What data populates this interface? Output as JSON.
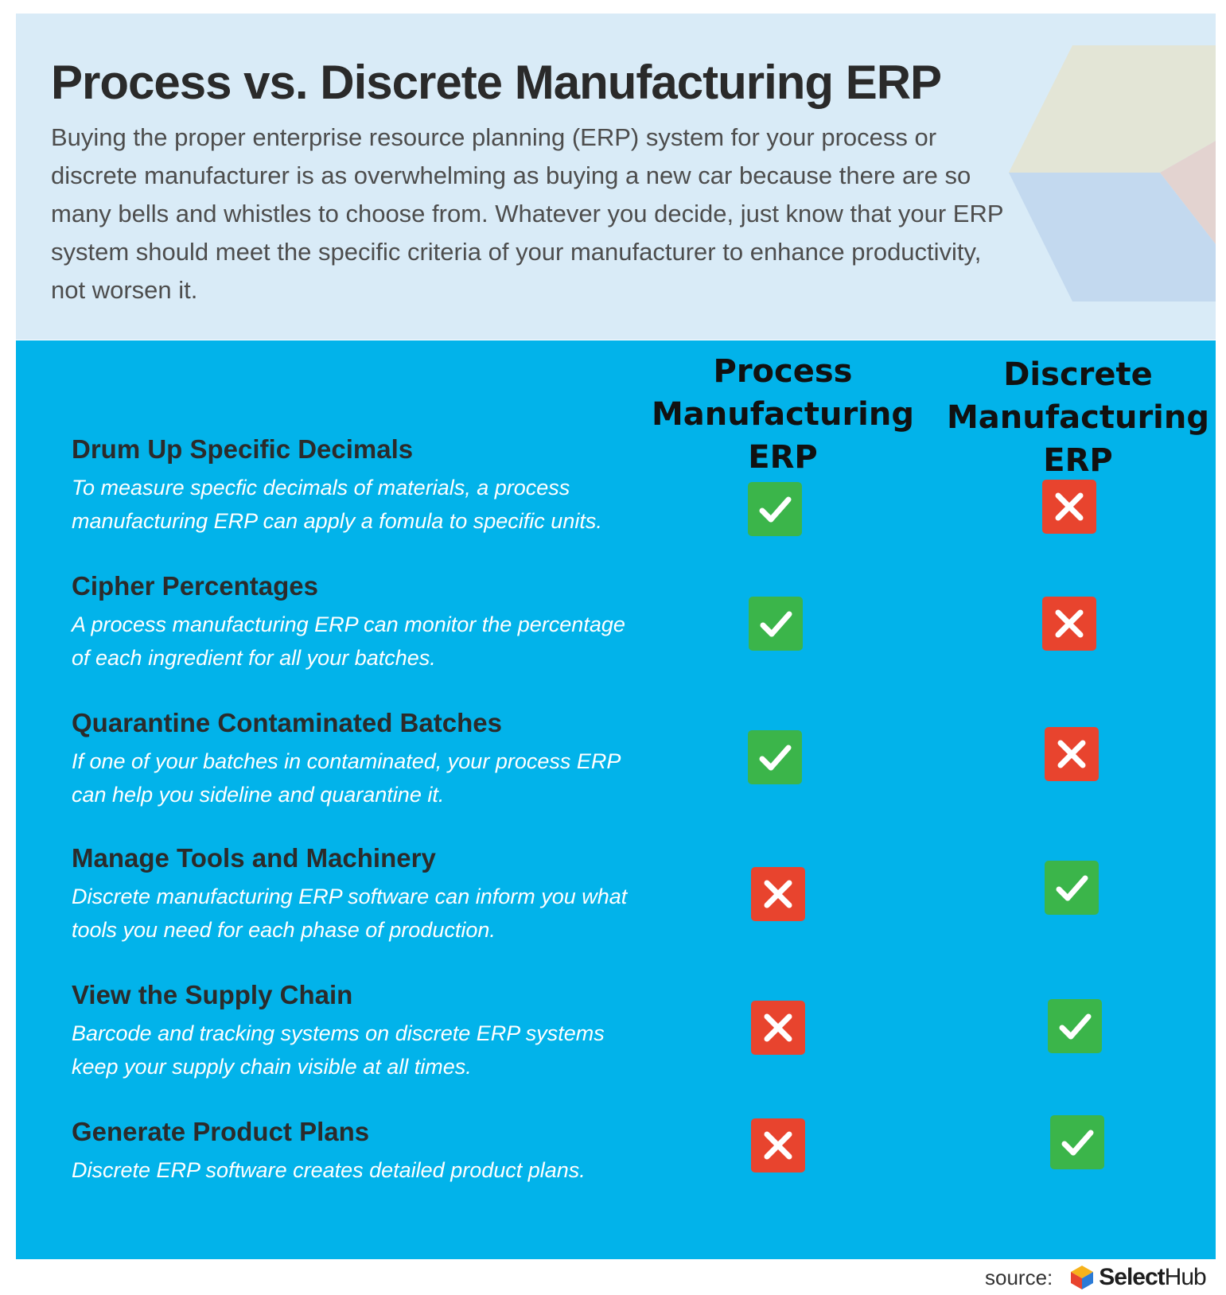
{
  "header": {
    "title": "Process vs. Discrete Manufacturing ERP",
    "intro": "Buying the proper enterprise resource planning (ERP) system for your process or discrete manufacturer is as overwhelming as buying a new car because there are so many bells and whistles to choose from. Whatever you decide, just know that your ERP system should meet the specific criteria of your manufacturer to enhance productivity, not worsen it."
  },
  "columns": {
    "process": [
      "Process",
      "Manufacturing",
      "ERP"
    ],
    "discrete": [
      "Discrete",
      "Manufacturing",
      "ERP"
    ]
  },
  "rows": [
    {
      "title": "Drum Up Specific Decimals",
      "description": "To measure specfic decimals of materials, a process manufacturing ERP can apply a fomula to specific units.",
      "process": "check-icon",
      "discrete": "x-icon"
    },
    {
      "title": "Cipher Percentages",
      "description": "A process manufacturing ERP can monitor the percentage of each ingredient for all your batches.",
      "process": "check-icon",
      "discrete": "x-icon"
    },
    {
      "title": "Quarantine Contaminated Batches",
      "description": "If one of your batches in contaminated, your process ERP can help you sideline and quarantine it.",
      "process": "check-icon",
      "discrete": "x-icon"
    },
    {
      "title": "Manage Tools and Machinery",
      "description": "Discrete manufacturing ERP software can inform you what tools you need for each phase of production.",
      "process": "x-icon",
      "discrete": "check-icon"
    },
    {
      "title": "View the Supply Chain",
      "description": "Barcode and tracking systems on discrete ERP systems keep your supply chain visible at all times.",
      "process": "x-icon",
      "discrete": "check-icon"
    },
    {
      "title": "Generate Product Plans",
      "description": "Discrete ERP software creates detailed product plans.",
      "process": "x-icon",
      "discrete": "check-icon"
    }
  ],
  "footer": {
    "source_label": "source:",
    "brand_select": "Select",
    "brand_hub": "Hub"
  },
  "colors": {
    "header_bg": "#d9ebf7",
    "panel_bg": "#02b3ea",
    "check_green": "#3bb54a",
    "x_red": "#e8442e"
  }
}
